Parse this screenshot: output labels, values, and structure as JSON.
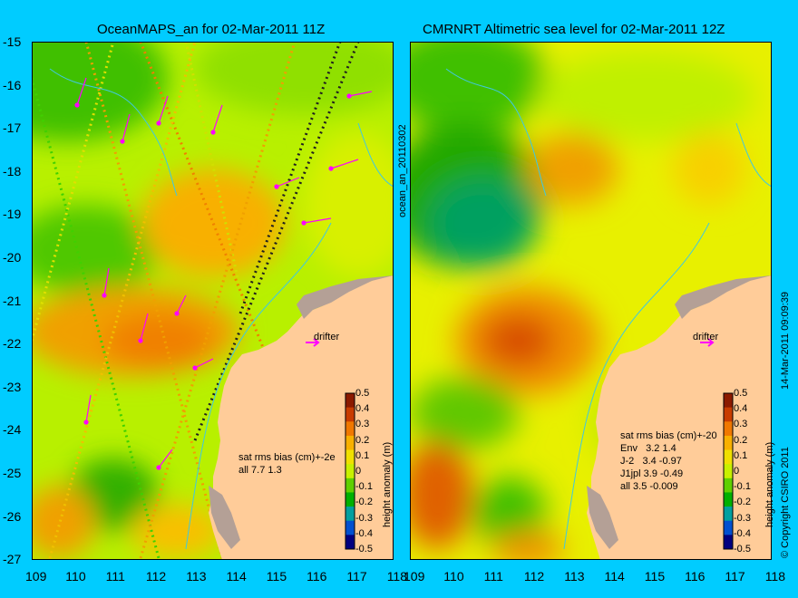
{
  "left_panel": {
    "title": "OceanMAPS_an for 02-Mar-2011 11Z",
    "side_label": "ocean_an_20110302",
    "stats_header": "sat rms bias (cm)+-2e",
    "stats_rows": [
      "all 7.7 1.3"
    ],
    "drifter_label": "drifter"
  },
  "right_panel": {
    "title": "CMRNRT Altimetric sea level  for 02-Mar-2011 12Z",
    "stats_header": "sat rms bias (cm)+-20",
    "stats_rows": [
      "Env   3.2 1.4",
      "J-2   3.4 -0.97",
      "J1jpl 3.9 -0.49",
      "all 3.5 -0.009"
    ],
    "drifter_label": "drifter"
  },
  "axes": {
    "lat_ticks": [
      "-15",
      "-16",
      "-17",
      "-18",
      "-19",
      "-20",
      "-21",
      "-22",
      "-23",
      "-24",
      "-25",
      "-26",
      "-27"
    ],
    "lon_ticks": [
      "109",
      "110",
      "111",
      "112",
      "113",
      "114",
      "115",
      "116",
      "117",
      "118"
    ],
    "lat_range": [
      -27,
      -15
    ],
    "lon_range": [
      109,
      118
    ]
  },
  "colorbar": {
    "label": "height anomaly (m)",
    "ticks": [
      "0.5",
      "0.4",
      "0.3",
      "0.2",
      "0.1",
      "0",
      "-0.1",
      "-0.2",
      "-0.3",
      "-0.4",
      "-0.5"
    ],
    "range": [
      -0.5,
      0.5
    ],
    "colors": [
      "#8b1a00",
      "#c83c00",
      "#f07800",
      "#f8b000",
      "#f0e000",
      "#c8f000",
      "#60d000",
      "#00b000",
      "#00a0a0",
      "#0050d0",
      "#000080"
    ]
  },
  "credits": {
    "copyright": "© Copyright CSIRO 2011",
    "timestamp": "14-Mar-2011 09:09:39"
  },
  "colors": {
    "background": "#00ccff",
    "land": "#ffcc99",
    "coast_grey": "#b4a096",
    "drifter_arrow": "#ff00ff"
  }
}
